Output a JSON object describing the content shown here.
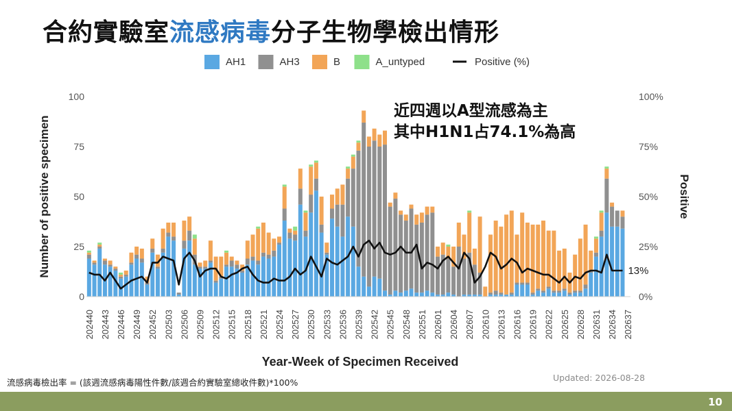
{
  "title": {
    "prefix": "合約實驗室",
    "highlight": "流感病毒",
    "suffix": "分子生物學檢出情形"
  },
  "annotation": {
    "line1": "近四週以A型流感為主",
    "line2": "其中H1N1占74.1%為高"
  },
  "footnote": "流感病毒檢出率 = (該週流感病毒陽性件數/該週合約實驗室總收件數)*100%",
  "updated": "Updated: 2026-08-28",
  "page_number": "10",
  "chart_data": {
    "type": "bar",
    "stacked": true,
    "xlabel": "Year-Week of Specimen Received",
    "ylabel": "Number of positive specimen",
    "y2label": "Positive",
    "ylim": [
      0,
      100
    ],
    "y2lim": [
      0,
      100
    ],
    "yticks": [
      "0",
      "25",
      "50",
      "75",
      "100"
    ],
    "y2ticks": [
      "0%",
      "25%",
      "50%",
      "75%",
      "100%"
    ],
    "legend_position": "top",
    "colors": {
      "AH1": "#5aa8e2",
      "AH3": "#909090",
      "B": "#f2a557",
      "A_untyped": "#8ee08a",
      "Positive (%)": "#111111"
    },
    "x_tick_labels": [
      "202440",
      "202443",
      "202446",
      "202449",
      "202452",
      "202503",
      "202506",
      "202509",
      "202512",
      "202515",
      "202518",
      "202521",
      "202524",
      "202527",
      "202530",
      "202533",
      "202536",
      "202539",
      "202542",
      "202545",
      "202548",
      "202551",
      "202601",
      "202604",
      "202607",
      "202610",
      "202613",
      "202616",
      "202619",
      "202622",
      "202625",
      "202628",
      "202631",
      "202634",
      "202637"
    ],
    "series": [
      {
        "name": "AH1",
        "values": [
          19,
          16,
          24,
          16,
          15,
          13,
          9,
          10,
          16,
          19,
          17,
          6,
          22,
          14,
          22,
          30,
          28,
          1,
          24,
          28,
          16,
          14,
          14,
          17,
          7,
          9,
          15,
          15,
          14,
          12,
          16,
          18,
          16,
          20,
          19,
          20,
          26,
          38,
          29,
          28,
          46,
          30,
          42,
          53,
          32,
          21,
          39,
          35,
          30,
          40,
          35,
          15,
          10,
          5,
          10,
          9,
          3,
          1,
          3,
          2,
          3,
          4,
          2,
          2,
          3,
          2,
          1,
          1,
          2,
          1,
          0,
          1,
          1,
          1,
          1,
          0,
          1,
          1,
          1,
          1,
          1,
          6,
          6,
          6,
          1,
          3,
          2,
          4,
          2,
          2,
          3,
          1,
          2,
          2,
          4,
          12,
          20,
          30,
          42,
          35,
          35,
          34
        ]
      },
      {
        "name": "AH3",
        "values": [
          2,
          1,
          1,
          2,
          1,
          1,
          1,
          1,
          1,
          2,
          2,
          1,
          2,
          1,
          2,
          2,
          2,
          1,
          4,
          5,
          5,
          1,
          1,
          1,
          1,
          1,
          1,
          3,
          2,
          1,
          3,
          2,
          2,
          2,
          2,
          3,
          1,
          6,
          3,
          3,
          8,
          3,
          9,
          6,
          4,
          1,
          5,
          11,
          16,
          19,
          29,
          58,
          77,
          70,
          68,
          66,
          73,
          44,
          46,
          39,
          35,
          40,
          34,
          35,
          38,
          40,
          19,
          20,
          17,
          14,
          25,
          18,
          21,
          15,
          11,
          0,
          1,
          2,
          1,
          0,
          1,
          1,
          1,
          1,
          1,
          1,
          1,
          1,
          1,
          1,
          1,
          1,
          1,
          1,
          2,
          1,
          2,
          3,
          17,
          10,
          8,
          6
        ]
      },
      {
        "name": "B",
        "values": [
          1,
          1,
          1,
          1,
          2,
          1,
          1,
          2,
          5,
          4,
          5,
          3,
          5,
          6,
          10,
          5,
          7,
          0,
          10,
          7,
          8,
          2,
          3,
          10,
          12,
          10,
          6,
          2,
          2,
          3,
          9,
          11,
          16,
          15,
          11,
          6,
          3,
          11,
          2,
          2,
          10,
          9,
          14,
          8,
          14,
          5,
          7,
          8,
          10,
          5,
          6,
          4,
          6,
          5,
          6,
          6,
          7,
          2,
          3,
          2,
          3,
          2,
          5,
          5,
          4,
          3,
          5,
          6,
          6,
          10,
          12,
          12,
          20,
          8,
          28,
          5,
          29,
          35,
          33,
          40,
          41,
          24,
          35,
          30,
          34,
          32,
          35,
          28,
          30,
          20,
          20,
          10,
          18,
          26,
          30,
          10,
          7,
          9,
          5,
          2,
          0,
          3
        ]
      },
      {
        "name": "A_untyped",
        "values": [
          1,
          0,
          1,
          0,
          0,
          0,
          1,
          0,
          0,
          0,
          0,
          0,
          0,
          0,
          0,
          0,
          0,
          0,
          0,
          0,
          2,
          0,
          0,
          0,
          0,
          0,
          1,
          0,
          0,
          0,
          0,
          0,
          1,
          0,
          0,
          0,
          0,
          1,
          0,
          2,
          0,
          1,
          1,
          1,
          0,
          0,
          0,
          0,
          0,
          1,
          1,
          1,
          0,
          0,
          0,
          0,
          0,
          0,
          0,
          0,
          0,
          0,
          0,
          0,
          0,
          0,
          0,
          0,
          1,
          0,
          0,
          0,
          1,
          0,
          0,
          0,
          0,
          0,
          0,
          0,
          0,
          0,
          0,
          0,
          0,
          0,
          0,
          0,
          0,
          0,
          0,
          0,
          0,
          0,
          0,
          0,
          1,
          1,
          1,
          0,
          0,
          0
        ]
      },
      {
        "name": "Positive (%)",
        "axis": "right",
        "values": [
          12,
          11,
          11,
          8,
          12,
          8,
          4,
          6,
          8,
          9,
          10,
          7,
          17,
          17,
          20,
          19,
          18,
          6,
          19,
          22,
          18,
          10,
          13,
          14,
          14,
          10,
          9,
          11,
          12,
          14,
          15,
          11,
          8,
          7,
          7,
          9,
          8,
          8,
          10,
          14,
          11,
          13,
          20,
          15,
          10,
          19,
          17,
          16,
          18,
          20,
          25,
          20,
          26,
          28,
          24,
          27,
          22,
          21,
          22,
          25,
          22,
          22,
          26,
          14,
          17,
          16,
          14,
          18,
          20,
          17,
          14,
          22,
          19,
          7,
          10,
          15,
          22,
          20,
          14,
          16,
          19,
          17,
          12,
          14,
          13,
          12,
          11,
          11,
          9,
          7,
          10,
          7,
          10,
          9,
          12,
          13,
          13,
          12,
          21,
          13,
          13,
          13
        ]
      }
    ],
    "annotations": [
      "13%"
    ]
  }
}
